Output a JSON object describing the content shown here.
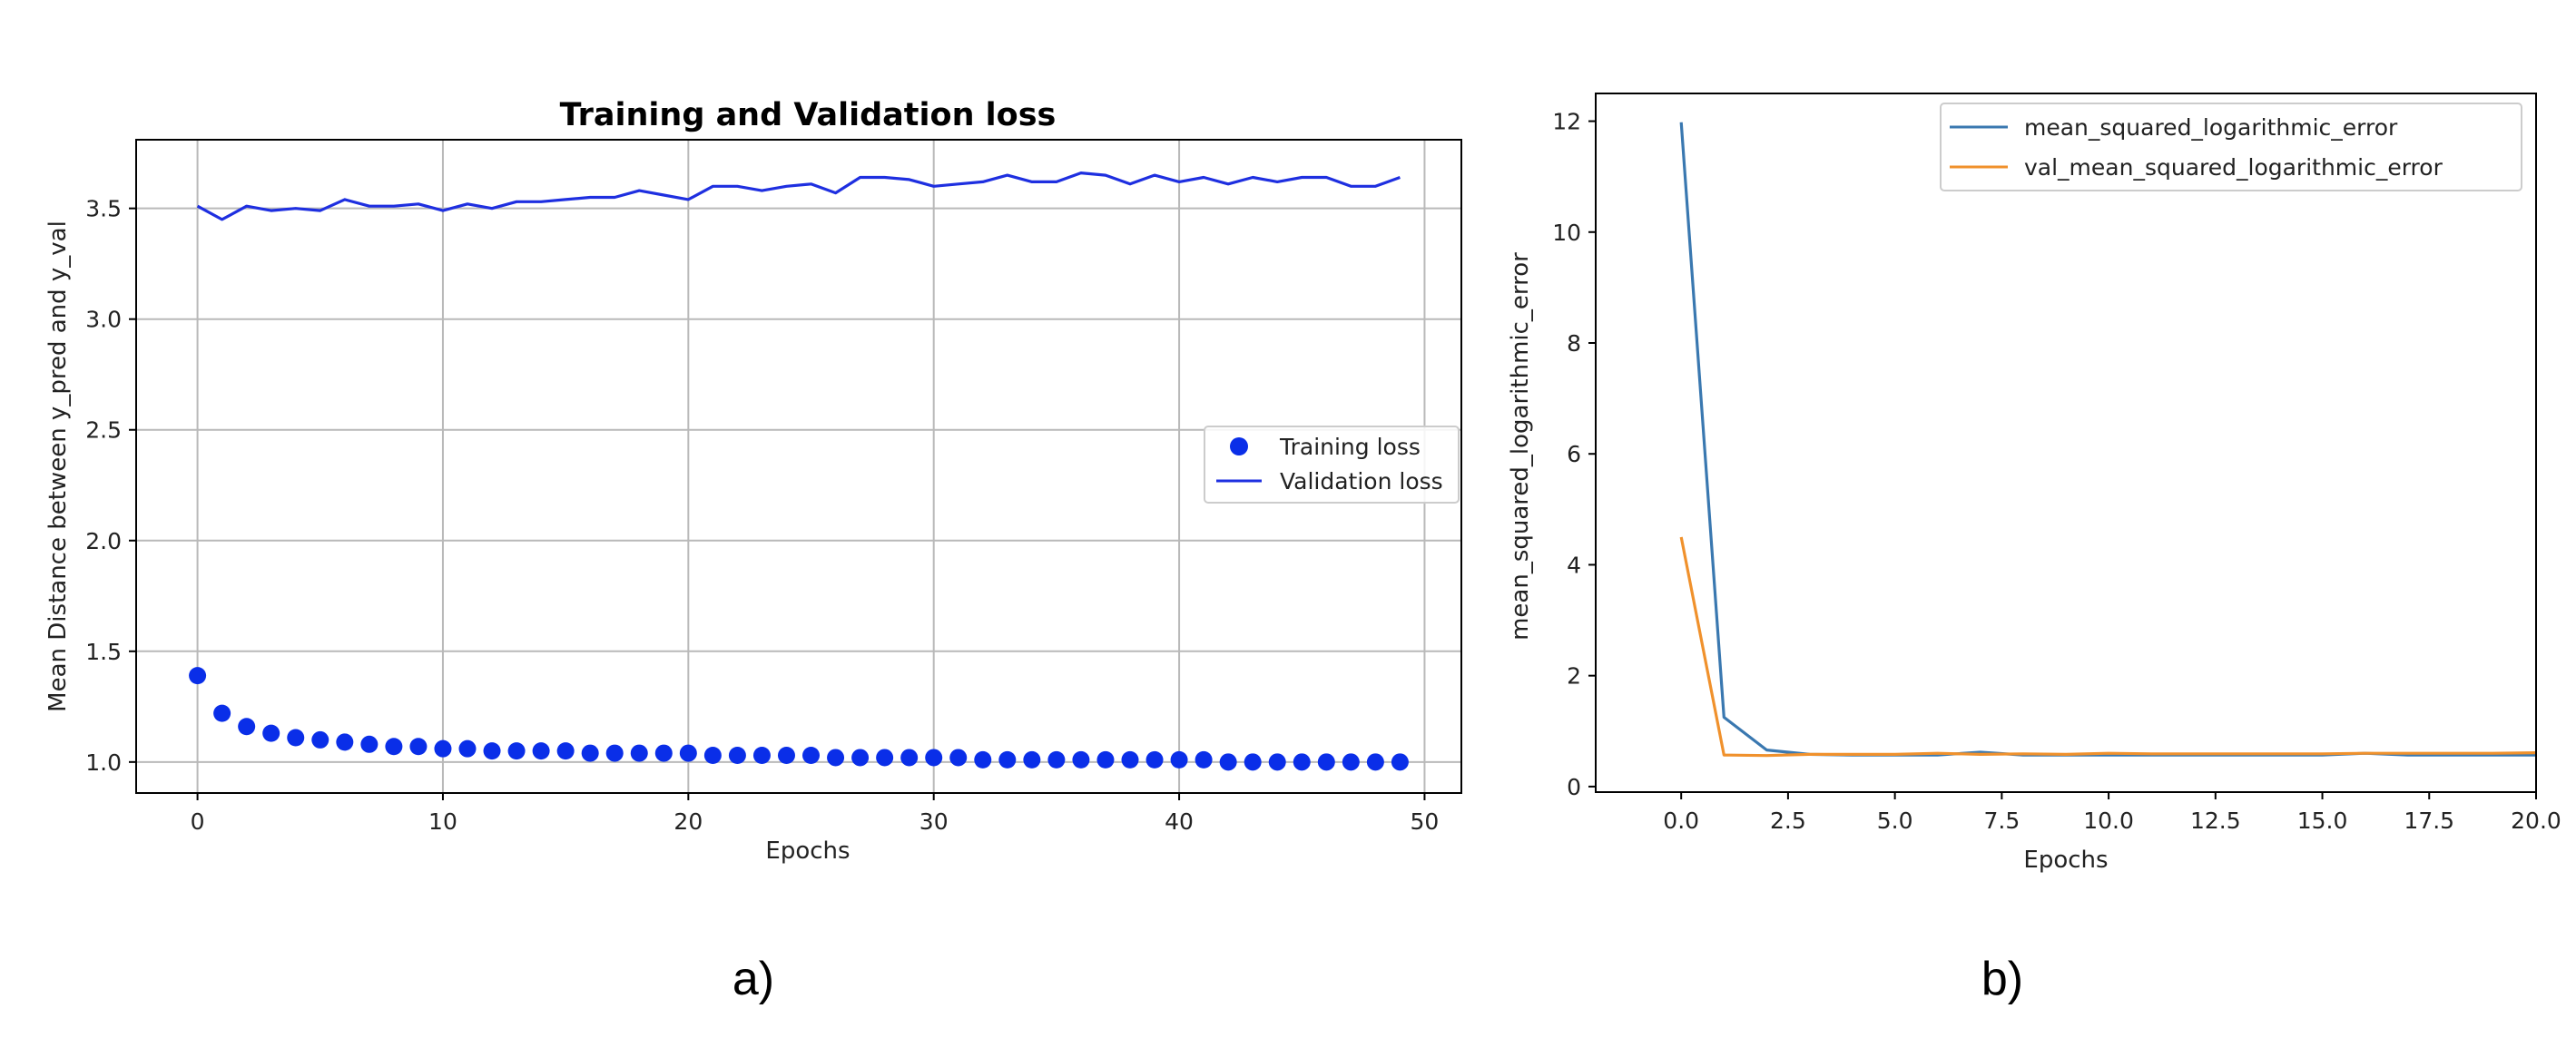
{
  "chart_data": [
    {
      "type": "line",
      "title": "Training and Validation loss",
      "xlabel": "Epochs",
      "ylabel": "Mean Distance between y_pred and y_val",
      "xlim": [
        -2.5,
        51.5
      ],
      "ylim": [
        0.86,
        3.81
      ],
      "x_ticks": [
        0,
        10,
        20,
        30,
        40,
        50
      ],
      "y_ticks": [
        1.0,
        1.5,
        2.0,
        2.5,
        3.0,
        3.5
      ],
      "grid": true,
      "legend_position": "center-right",
      "series": [
        {
          "name": "Training loss",
          "style": "markers",
          "color": "#0a2ee8",
          "x": [
            0,
            1,
            2,
            3,
            4,
            5,
            6,
            7,
            8,
            9,
            10,
            11,
            12,
            13,
            14,
            15,
            16,
            17,
            18,
            19,
            20,
            21,
            22,
            23,
            24,
            25,
            26,
            27,
            28,
            29,
            30,
            31,
            32,
            33,
            34,
            35,
            36,
            37,
            38,
            39,
            40,
            41,
            42,
            43,
            44,
            45,
            46,
            47,
            48,
            49
          ],
          "values": [
            1.39,
            1.22,
            1.16,
            1.13,
            1.11,
            1.1,
            1.09,
            1.08,
            1.07,
            1.07,
            1.06,
            1.06,
            1.05,
            1.05,
            1.05,
            1.05,
            1.04,
            1.04,
            1.04,
            1.04,
            1.04,
            1.03,
            1.03,
            1.03,
            1.03,
            1.03,
            1.02,
            1.02,
            1.02,
            1.02,
            1.02,
            1.02,
            1.01,
            1.01,
            1.01,
            1.01,
            1.01,
            1.01,
            1.01,
            1.01,
            1.01,
            1.01,
            1.0,
            1.0,
            1.0,
            1.0,
            1.0,
            1.0,
            1.0,
            1.0
          ]
        },
        {
          "name": "Validation loss",
          "style": "line",
          "color": "#1e2fe0",
          "x": [
            0,
            1,
            2,
            3,
            4,
            5,
            6,
            7,
            8,
            9,
            10,
            11,
            12,
            13,
            14,
            15,
            16,
            17,
            18,
            19,
            20,
            21,
            22,
            23,
            24,
            25,
            26,
            27,
            28,
            29,
            30,
            31,
            32,
            33,
            34,
            35,
            36,
            37,
            38,
            39,
            40,
            41,
            42,
            43,
            44,
            45,
            46,
            47,
            48,
            49
          ],
          "values": [
            3.51,
            3.45,
            3.51,
            3.49,
            3.5,
            3.49,
            3.54,
            3.51,
            3.51,
            3.52,
            3.49,
            3.52,
            3.5,
            3.53,
            3.53,
            3.54,
            3.55,
            3.55,
            3.58,
            3.56,
            3.54,
            3.6,
            3.6,
            3.58,
            3.6,
            3.61,
            3.57,
            3.64,
            3.64,
            3.63,
            3.6,
            3.61,
            3.62,
            3.65,
            3.62,
            3.62,
            3.66,
            3.65,
            3.61,
            3.65,
            3.62,
            3.64,
            3.61,
            3.64,
            3.62,
            3.64,
            3.64,
            3.6,
            3.6,
            3.64
          ]
        }
      ]
    },
    {
      "type": "line",
      "title": "",
      "xlabel": "Epochs",
      "ylabel": "mean_squared_logarithmic_error",
      "xlim": [
        -2.0,
        20.0
      ],
      "ylim": [
        -0.1,
        12.5
      ],
      "x_ticks": [
        0.0,
        2.5,
        5.0,
        7.5,
        10.0,
        12.5,
        15.0,
        17.5,
        20.0
      ],
      "y_ticks": [
        0,
        2,
        4,
        6,
        8,
        10,
        12
      ],
      "grid": false,
      "legend_position": "top-right",
      "series": [
        {
          "name": "mean_squared_logarithmic_error",
          "style": "line",
          "color": "#3a78b0",
          "x": [
            0,
            1,
            2,
            3,
            4,
            5,
            6,
            7,
            8,
            9,
            10,
            11,
            12,
            13,
            14,
            15,
            16,
            17,
            18,
            19,
            20
          ],
          "values": [
            11.98,
            1.25,
            0.66,
            0.58,
            0.57,
            0.57,
            0.57,
            0.62,
            0.57,
            0.57,
            0.57,
            0.57,
            0.57,
            0.57,
            0.57,
            0.57,
            0.6,
            0.57,
            0.57,
            0.57,
            0.57
          ]
        },
        {
          "name": "val_mean_squared_logarithmic_error",
          "style": "line",
          "color": "#f0912c",
          "x": [
            0,
            1,
            2,
            3,
            4,
            5,
            6,
            7,
            8,
            9,
            10,
            11,
            12,
            13,
            14,
            15,
            16,
            17,
            18,
            19,
            20
          ],
          "values": [
            4.5,
            0.57,
            0.56,
            0.58,
            0.58,
            0.58,
            0.6,
            0.58,
            0.59,
            0.58,
            0.6,
            0.59,
            0.59,
            0.59,
            0.59,
            0.59,
            0.6,
            0.6,
            0.6,
            0.6,
            0.61
          ]
        }
      ]
    }
  ],
  "captions": [
    "a)",
    "b)"
  ]
}
